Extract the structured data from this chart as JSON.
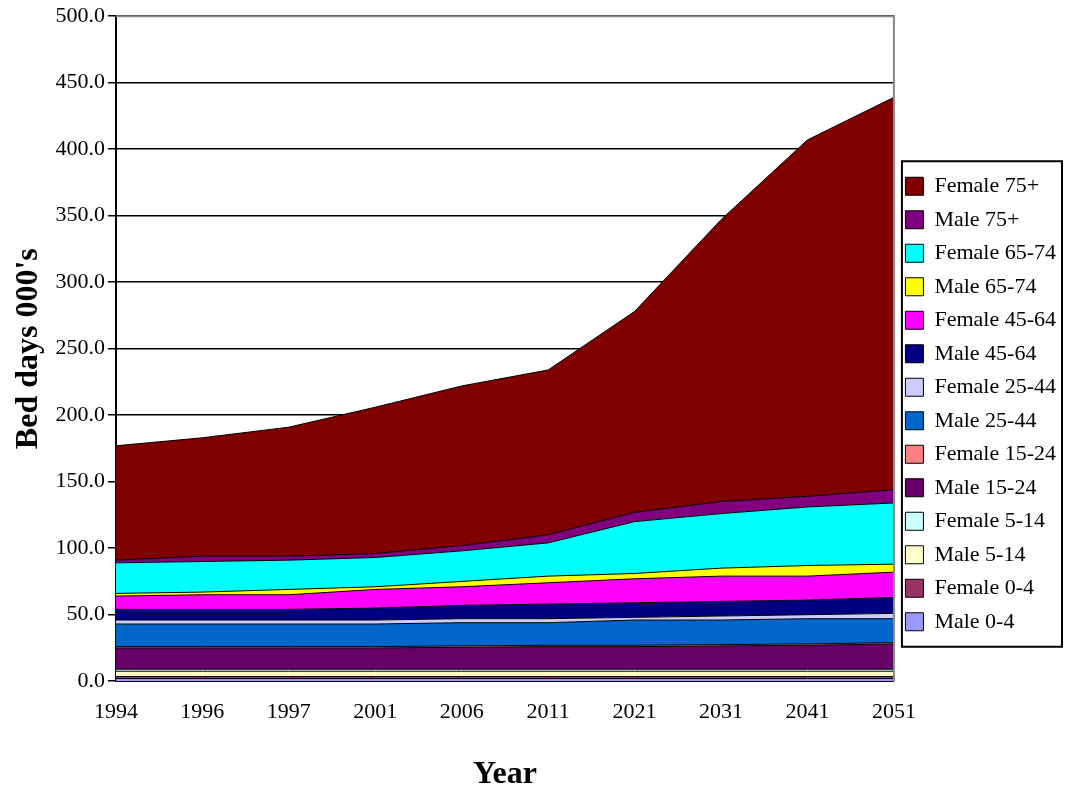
{
  "chart_data": {
    "type": "area",
    "stacked": true,
    "xlabel": "Year",
    "ylabel": "Bed days 000's",
    "categories": [
      "1994",
      "1996",
      "1997",
      "2001",
      "2006",
      "2011",
      "2021",
      "2031",
      "2041",
      "2051"
    ],
    "ylim": [
      0,
      500
    ],
    "yticks": [
      {
        "value": 0,
        "label": "0.0"
      },
      {
        "value": 50,
        "label": "50.0"
      },
      {
        "value": 100,
        "label": "100.0"
      },
      {
        "value": 150,
        "label": "150.0"
      },
      {
        "value": 200,
        "label": "200.0"
      },
      {
        "value": 250,
        "label": "250.0"
      },
      {
        "value": 300,
        "label": "300.0"
      },
      {
        "value": 350,
        "label": "350.0"
      },
      {
        "value": 400,
        "label": "400.0"
      },
      {
        "value": 450,
        "label": "450.0"
      },
      {
        "value": 500,
        "label": "500.0"
      }
    ],
    "grid": "y",
    "legend": "right",
    "series": [
      {
        "name": "Male 0-4",
        "color": "#9999ff",
        "values": [
          2,
          2,
          2,
          2,
          2,
          2,
          2,
          2,
          2,
          2
        ]
      },
      {
        "name": "Female 0-4",
        "color": "#993366",
        "values": [
          1.5,
          1.5,
          1.5,
          1.5,
          1.5,
          1.5,
          1.5,
          1.5,
          1.5,
          1.5
        ]
      },
      {
        "name": "Male 5-14",
        "color": "#ffffcc",
        "values": [
          4,
          4,
          4,
          4,
          4,
          4,
          4,
          4,
          4,
          4
        ]
      },
      {
        "name": "Female 5-14",
        "color": "#ccffff",
        "values": [
          1.5,
          1.5,
          1.5,
          1.5,
          1.5,
          1.5,
          1.5,
          1.5,
          1.5,
          1.5
        ]
      },
      {
        "name": "Male 15-24",
        "color": "#660066",
        "values": [
          16,
          16,
          16,
          16,
          16.5,
          17,
          17,
          17.5,
          18,
          19
        ]
      },
      {
        "name": "Female 15-24",
        "color": "#ff8080",
        "values": [
          1,
          1,
          1,
          1,
          1,
          1,
          1,
          1,
          1,
          1
        ]
      },
      {
        "name": "Male 25-44",
        "color": "#0066cc",
        "values": [
          17,
          17,
          17,
          17,
          17.5,
          17,
          19,
          18.5,
          19,
          18
        ]
      },
      {
        "name": "Female 25-44",
        "color": "#ccccff",
        "values": [
          3,
          3,
          3,
          3,
          3,
          3,
          2,
          3,
          3,
          4
        ]
      },
      {
        "name": "Male 45-64",
        "color": "#000080",
        "values": [
          8,
          8,
          8,
          9,
          10,
          11,
          11,
          11,
          11,
          12
        ]
      },
      {
        "name": "Female 45-64",
        "color": "#ff00ff",
        "values": [
          10,
          11,
          11,
          14,
          14,
          16,
          18,
          19,
          18,
          19
        ]
      },
      {
        "name": "Male 65-74",
        "color": "#ffff00",
        "values": [
          2,
          2,
          4,
          2,
          4,
          5,
          4,
          6,
          8,
          6
        ]
      },
      {
        "name": "Female 65-74",
        "color": "#00ffff",
        "values": [
          23,
          23,
          22,
          22,
          23,
          25,
          39,
          41,
          44,
          46
        ]
      },
      {
        "name": "Male 75+",
        "color": "#800080",
        "values": [
          2,
          4,
          3,
          3,
          4,
          6,
          7,
          9,
          8,
          10
        ]
      },
      {
        "name": "Female 75+",
        "color": "#800000",
        "values": [
          86,
          89,
          97,
          110,
          120,
          124,
          151,
          212,
          268,
          295
        ]
      }
    ]
  }
}
